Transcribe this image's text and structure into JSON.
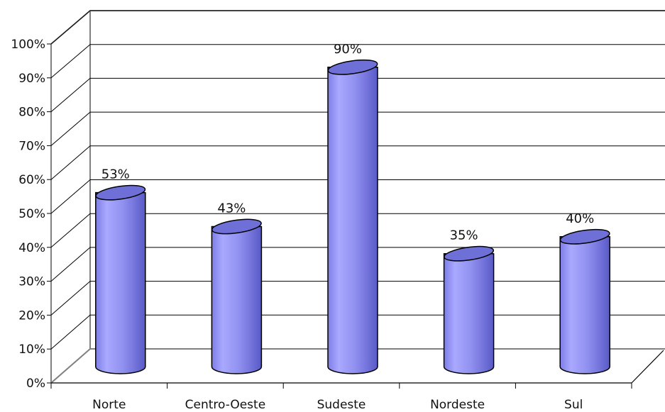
{
  "chart_data": {
    "type": "bar",
    "style": "3d-cylinder",
    "title": "",
    "xlabel": "",
    "ylabel": "",
    "categories": [
      "Norte",
      "Centro-Oeste",
      "Sudeste",
      "Nordeste",
      "Sul"
    ],
    "values": [
      53,
      43,
      90,
      35,
      40
    ],
    "value_labels": [
      "53%",
      "43%",
      "90%",
      "35%",
      "40%"
    ],
    "ylim": [
      0,
      100
    ],
    "yticks": [
      0,
      10,
      20,
      30,
      40,
      50,
      60,
      70,
      80,
      90,
      100
    ],
    "ytick_labels": [
      "0%",
      "10%",
      "20%",
      "30%",
      "40%",
      "50%",
      "60%",
      "70%",
      "80%",
      "90%",
      "100%"
    ],
    "grid": true,
    "legend": "none",
    "colors": {
      "bar_body": "#8f8ff2",
      "bar_top": "#6f6fd8",
      "outline": "#000000",
      "grid": "#000000",
      "wall": "#808080"
    }
  }
}
